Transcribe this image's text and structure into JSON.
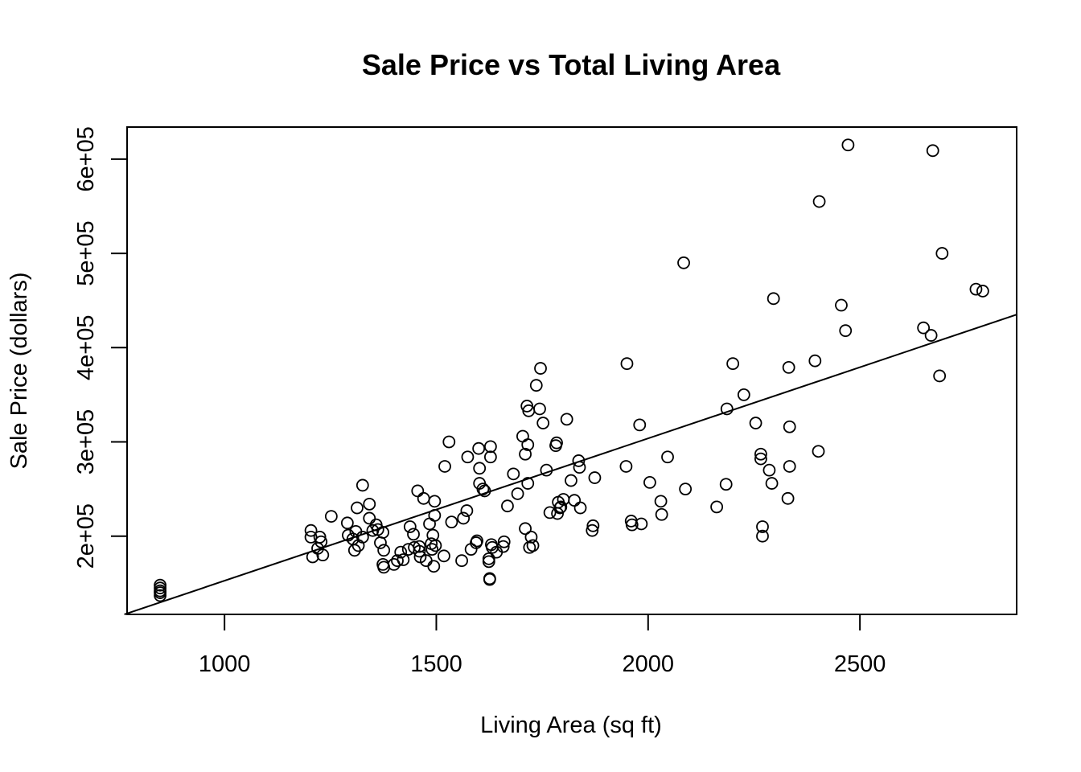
{
  "chart_data": {
    "type": "scatter",
    "title": "Sale Price vs Total Living Area",
    "xlabel": "Living Area (sq ft)",
    "ylabel": "Sale Price (dollars)",
    "xlim": [
      770,
      2870
    ],
    "ylim": [
      117000,
      634000
    ],
    "x_ticks": [
      1000,
      1500,
      2000,
      2500
    ],
    "x_tick_labels": [
      "1000",
      "1500",
      "2000",
      "2500"
    ],
    "y_ticks": [
      200000,
      300000,
      400000,
      500000,
      600000
    ],
    "y_tick_labels": [
      "2e+05",
      "3e+05",
      "4e+05",
      "5e+05",
      "6e+05"
    ],
    "grid": false,
    "legend": "none",
    "marker": "open-circle",
    "fit_line": {
      "intercept": 1700,
      "slope": 151
    },
    "points": [
      [
        848,
        148000
      ],
      [
        848,
        145000
      ],
      [
        848,
        142000
      ],
      [
        848,
        140000
      ],
      [
        848,
        137000
      ],
      [
        1204,
        206000
      ],
      [
        1204,
        199000
      ],
      [
        1208,
        178000
      ],
      [
        1220,
        187000
      ],
      [
        1225,
        199000
      ],
      [
        1228,
        194000
      ],
      [
        1232,
        180000
      ],
      [
        1252,
        221000
      ],
      [
        1290,
        214000
      ],
      [
        1292,
        201000
      ],
      [
        1303,
        197000
      ],
      [
        1307,
        185000
      ],
      [
        1310,
        205000
      ],
      [
        1313,
        230000
      ],
      [
        1316,
        190000
      ],
      [
        1326,
        254000
      ],
      [
        1326,
        199000
      ],
      [
        1342,
        234000
      ],
      [
        1342,
        219000
      ],
      [
        1350,
        206000
      ],
      [
        1358,
        212000
      ],
      [
        1362,
        207000
      ],
      [
        1368,
        193000
      ],
      [
        1374,
        204000
      ],
      [
        1374,
        170000
      ],
      [
        1376,
        185000
      ],
      [
        1376,
        167000
      ],
      [
        1400,
        170000
      ],
      [
        1408,
        174000
      ],
      [
        1416,
        183000
      ],
      [
        1422,
        175000
      ],
      [
        1434,
        186000
      ],
      [
        1438,
        210000
      ],
      [
        1446,
        202000
      ],
      [
        1448,
        188000
      ],
      [
        1456,
        248000
      ],
      [
        1460,
        189000
      ],
      [
        1460,
        184000
      ],
      [
        1462,
        178000
      ],
      [
        1470,
        240000
      ],
      [
        1476,
        174000
      ],
      [
        1484,
        213000
      ],
      [
        1488,
        192000
      ],
      [
        1490,
        186000
      ],
      [
        1492,
        201000
      ],
      [
        1494,
        168000
      ],
      [
        1496,
        222000
      ],
      [
        1496,
        237000
      ],
      [
        1498,
        190000
      ],
      [
        1518,
        179000
      ],
      [
        1520,
        274000
      ],
      [
        1530,
        300000
      ],
      [
        1536,
        215000
      ],
      [
        1560,
        174000
      ],
      [
        1564,
        219000
      ],
      [
        1572,
        227000
      ],
      [
        1574,
        284000
      ],
      [
        1582,
        186000
      ],
      [
        1594,
        193000
      ],
      [
        1596,
        195000
      ],
      [
        1600,
        293000
      ],
      [
        1602,
        256000
      ],
      [
        1602,
        272000
      ],
      [
        1610,
        250000
      ],
      [
        1614,
        248000
      ],
      [
        1624,
        173000
      ],
      [
        1624,
        176000
      ],
      [
        1626,
        155000
      ],
      [
        1626,
        154000
      ],
      [
        1628,
        295000
      ],
      [
        1628,
        284000
      ],
      [
        1630,
        191000
      ],
      [
        1632,
        188000
      ],
      [
        1642,
        183000
      ],
      [
        1658,
        189000
      ],
      [
        1660,
        194000
      ],
      [
        1668,
        232000
      ],
      [
        1682,
        266000
      ],
      [
        1692,
        245000
      ],
      [
        1704,
        306000
      ],
      [
        1710,
        208000
      ],
      [
        1710,
        287000
      ],
      [
        1714,
        338000
      ],
      [
        1716,
        297000
      ],
      [
        1716,
        256000
      ],
      [
        1718,
        333000
      ],
      [
        1720,
        188000
      ],
      [
        1724,
        199000
      ],
      [
        1728,
        190000
      ],
      [
        1736,
        360000
      ],
      [
        1744,
        335000
      ],
      [
        1746,
        378000
      ],
      [
        1752,
        320000
      ],
      [
        1760,
        270000
      ],
      [
        1768,
        225000
      ],
      [
        1782,
        296000
      ],
      [
        1784,
        299000
      ],
      [
        1786,
        224000
      ],
      [
        1788,
        236000
      ],
      [
        1792,
        230000
      ],
      [
        1794,
        231000
      ],
      [
        1800,
        239000
      ],
      [
        1808,
        324000
      ],
      [
        1818,
        259000
      ],
      [
        1826,
        238000
      ],
      [
        1836,
        280000
      ],
      [
        1838,
        273000
      ],
      [
        1840,
        230000
      ],
      [
        1868,
        206000
      ],
      [
        1870,
        211000
      ],
      [
        1874,
        262000
      ],
      [
        1948,
        274000
      ],
      [
        1950,
        383000
      ],
      [
        1960,
        216000
      ],
      [
        1962,
        212000
      ],
      [
        1980,
        318000
      ],
      [
        1984,
        213000
      ],
      [
        2004,
        257000
      ],
      [
        2030,
        237000
      ],
      [
        2032,
        223000
      ],
      [
        2046,
        284000
      ],
      [
        2084,
        490000
      ],
      [
        2088,
        250000
      ],
      [
        2162,
        231000
      ],
      [
        2184,
        255000
      ],
      [
        2186,
        335000
      ],
      [
        2200,
        383000
      ],
      [
        2226,
        350000
      ],
      [
        2254,
        320000
      ],
      [
        2266,
        287000
      ],
      [
        2266,
        282000
      ],
      [
        2270,
        210000
      ],
      [
        2270,
        200000
      ],
      [
        2286,
        270000
      ],
      [
        2292,
        256000
      ],
      [
        2296,
        452000
      ],
      [
        2330,
        240000
      ],
      [
        2332,
        379000
      ],
      [
        2334,
        316000
      ],
      [
        2334,
        274000
      ],
      [
        2394,
        386000
      ],
      [
        2402,
        290000
      ],
      [
        2404,
        555000
      ],
      [
        2456,
        445000
      ],
      [
        2466,
        418000
      ],
      [
        2472,
        615000
      ],
      [
        2650,
        421000
      ],
      [
        2668,
        413000
      ],
      [
        2672,
        609000
      ],
      [
        2688,
        370000
      ],
      [
        2694,
        500000
      ],
      [
        2774,
        462000
      ],
      [
        2790,
        460000
      ]
    ]
  }
}
